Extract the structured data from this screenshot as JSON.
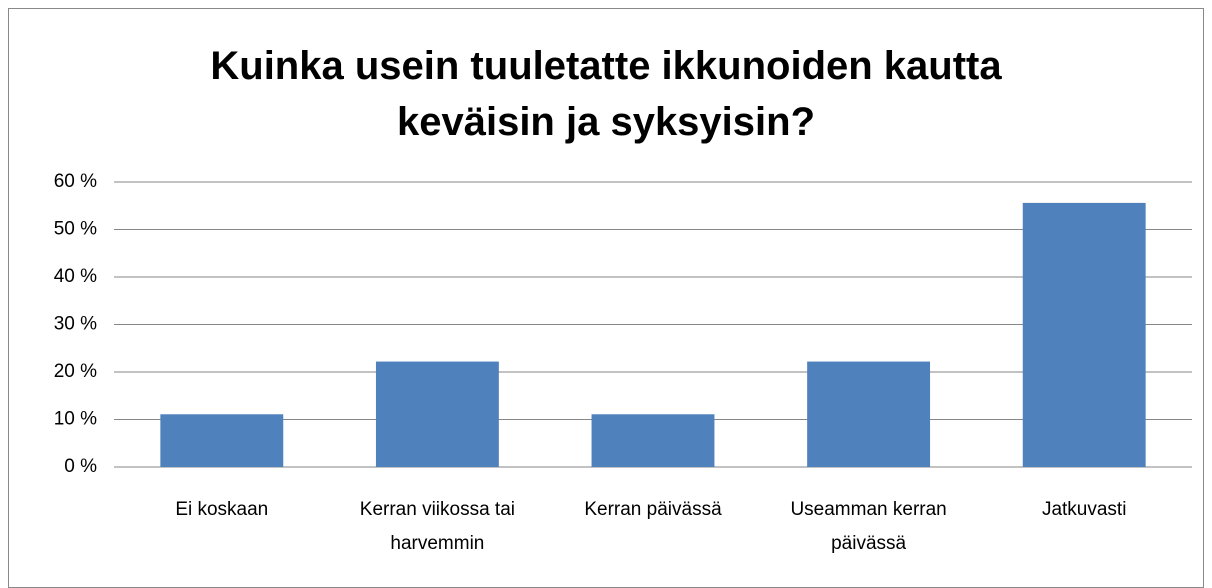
{
  "chart_data": {
    "type": "bar",
    "title": "Kuinka usein tuuletatte ikkunoiden kautta keväisin ja syksyisin?",
    "categories": [
      "Ei koskaan",
      "Kerran viikossa tai harvemmin",
      "Kerran päivässä",
      "Useamman kerran päivässä",
      "Jatkuvasti"
    ],
    "values": [
      11.1,
      22.2,
      11.1,
      22.2,
      55.6
    ],
    "color": "#4f81bd",
    "ylim": [
      0,
      60
    ],
    "yticks": [
      {
        "value": 0,
        "label": "0 %"
      },
      {
        "value": 10,
        "label": "10 %"
      },
      {
        "value": 20,
        "label": "20 %"
      },
      {
        "value": 30,
        "label": "30 %"
      },
      {
        "value": 40,
        "label": "40 %"
      },
      {
        "value": 50,
        "label": "50 %"
      },
      {
        "value": 60,
        "label": "60 %"
      }
    ],
    "grid": true
  }
}
